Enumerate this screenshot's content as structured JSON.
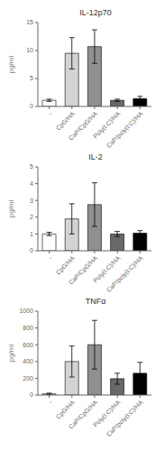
{
  "chart_data": [
    {
      "type": "bar",
      "title": "IL-12p70",
      "ylabel": "pg/ml",
      "ylim": [
        0,
        15
      ],
      "yticks": [
        0,
        5,
        10,
        15
      ],
      "categories": [
        "-",
        "CpG/HA",
        "CaP/CpG/HA",
        "Poly(I:C)/HA",
        "CaP/poly(I:C)/HA"
      ],
      "values": [
        1.1,
        9.5,
        10.7,
        1.1,
        1.4
      ],
      "errors": [
        0.2,
        2.8,
        3.0,
        0.2,
        0.4
      ],
      "colors": [
        "#ffffff",
        "#d3d3d3",
        "#909090",
        "#686868",
        "#000000"
      ]
    },
    {
      "type": "bar",
      "title": "IL-2",
      "ylabel": "pg/ml",
      "ylim": [
        0,
        5
      ],
      "yticks": [
        0,
        1,
        2,
        3,
        4,
        5
      ],
      "categories": [
        "-",
        "CpG/HA",
        "CaP/CpG/HA",
        "Poly(I:C)/HA",
        "CaP/poly(I:C)/HA"
      ],
      "values": [
        1.0,
        1.9,
        2.75,
        1.0,
        1.05
      ],
      "errors": [
        0.1,
        0.9,
        1.3,
        0.15,
        0.15
      ],
      "colors": [
        "#ffffff",
        "#d3d3d3",
        "#909090",
        "#686868",
        "#000000"
      ]
    },
    {
      "type": "bar",
      "title": "TNFα",
      "ylabel": "pg/ml",
      "ylim": [
        0,
        1000
      ],
      "yticks": [
        0,
        200,
        400,
        600,
        800,
        1000
      ],
      "categories": [
        "-",
        "CpG/HA",
        "CaP/CpG/HA",
        "Poly(I:C)/HA",
        "CaP/poly(I:C)/HA"
      ],
      "values": [
        15,
        400,
        600,
        195,
        260
      ],
      "errors": [
        8,
        185,
        290,
        65,
        130
      ],
      "colors": [
        "#ffffff",
        "#d3d3d3",
        "#909090",
        "#686868",
        "#000000"
      ]
    }
  ]
}
